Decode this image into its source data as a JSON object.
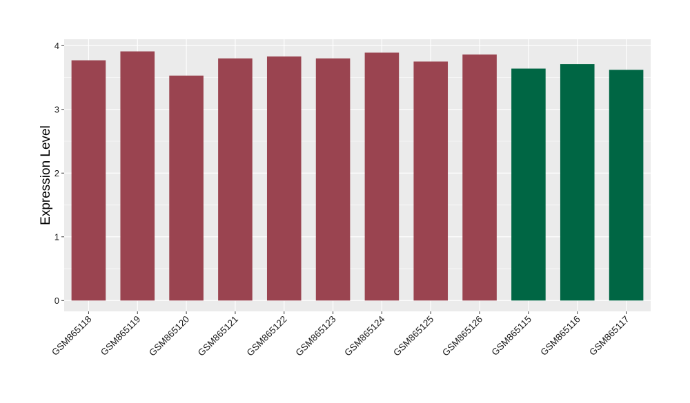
{
  "chart_data": {
    "type": "bar",
    "title": "",
    "xlabel": "",
    "ylabel": "Expression Level",
    "ylim": [
      -0.17,
      4.1
    ],
    "yticks": [
      0,
      1,
      2,
      3,
      4
    ],
    "grid": true,
    "categories": [
      "GSM865118",
      "GSM865119",
      "GSM865120",
      "GSM865121",
      "GSM865122",
      "GSM865123",
      "GSM865124",
      "GSM865125",
      "GSM865126",
      "GSM865115",
      "GSM865116",
      "GSM865117"
    ],
    "values": [
      3.77,
      3.91,
      3.53,
      3.8,
      3.83,
      3.8,
      3.89,
      3.75,
      3.86,
      3.64,
      3.71,
      3.62
    ],
    "bar_colors": [
      "#9a4450",
      "#9a4450",
      "#9a4450",
      "#9a4450",
      "#9a4450",
      "#9a4450",
      "#9a4450",
      "#9a4450",
      "#9a4450",
      "#006644",
      "#006644",
      "#006644"
    ],
    "panel_background": "#ebebeb",
    "grid_color": "#ffffff"
  }
}
